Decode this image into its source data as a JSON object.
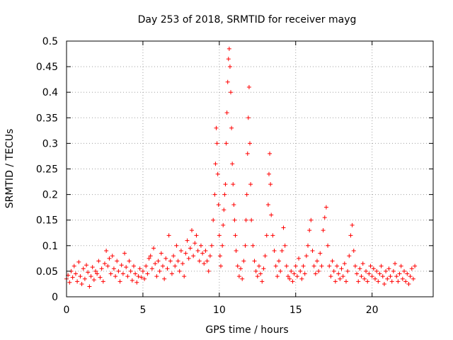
{
  "chart_data": {
    "type": "scatter",
    "title": "Day 253 of 2018, SRMTID for receiver mayg",
    "xlabel": "GPS time / hours",
    "ylabel": "SRMTID / TECUs",
    "xlim": [
      0,
      24
    ],
    "ylim": [
      0,
      0.5
    ],
    "x_ticks": [
      0,
      5,
      10,
      15,
      20
    ],
    "x_tick_labels": [
      "0",
      "5",
      "10",
      "15",
      "20"
    ],
    "y_ticks": [
      0,
      0.05,
      0.1,
      0.15,
      0.2,
      0.25,
      0.3,
      0.35,
      0.4,
      0.45,
      0.5
    ],
    "y_tick_labels": [
      "0",
      "0.05",
      "0.1",
      "0.15",
      "0.2",
      "0.25",
      "0.3",
      "0.35",
      "0.4",
      "0.45",
      "0.5"
    ],
    "grid": true,
    "marker": "+",
    "color": "#ff0000",
    "series": [
      {
        "name": "SRMTID",
        "points": [
          [
            0.0,
            0.035
          ],
          [
            0.1,
            0.042
          ],
          [
            0.2,
            0.028
          ],
          [
            0.3,
            0.05
          ],
          [
            0.4,
            0.038
          ],
          [
            0.5,
            0.06
          ],
          [
            0.6,
            0.045
          ],
          [
            0.7,
            0.03
          ],
          [
            0.8,
            0.068
          ],
          [
            0.9,
            0.04
          ],
          [
            1.0,
            0.025
          ],
          [
            1.1,
            0.055
          ],
          [
            1.2,
            0.035
          ],
          [
            1.3,
            0.062
          ],
          [
            1.4,
            0.048
          ],
          [
            1.5,
            0.02
          ],
          [
            1.6,
            0.04
          ],
          [
            1.7,
            0.058
          ],
          [
            1.8,
            0.033
          ],
          [
            1.9,
            0.05
          ],
          [
            2.0,
            0.045
          ],
          [
            2.1,
            0.07
          ],
          [
            2.2,
            0.038
          ],
          [
            2.3,
            0.055
          ],
          [
            2.4,
            0.03
          ],
          [
            2.5,
            0.065
          ],
          [
            2.6,
            0.09
          ],
          [
            2.7,
            0.06
          ],
          [
            2.8,
            0.075
          ],
          [
            2.9,
            0.045
          ],
          [
            3.0,
            0.08
          ],
          [
            3.1,
            0.055
          ],
          [
            3.2,
            0.04
          ],
          [
            3.3,
            0.07
          ],
          [
            3.4,
            0.05
          ],
          [
            3.5,
            0.03
          ],
          [
            3.6,
            0.062
          ],
          [
            3.7,
            0.045
          ],
          [
            3.8,
            0.085
          ],
          [
            3.9,
            0.058
          ],
          [
            4.0,
            0.04
          ],
          [
            4.1,
            0.07
          ],
          [
            4.2,
            0.05
          ],
          [
            4.3,
            0.032
          ],
          [
            4.4,
            0.06
          ],
          [
            4.5,
            0.045
          ],
          [
            4.6,
            0.028
          ],
          [
            4.7,
            0.04
          ],
          [
            4.8,
            0.055
          ],
          [
            4.9,
            0.038
          ],
          [
            5.0,
            0.05
          ],
          [
            5.1,
            0.035
          ],
          [
            5.2,
            0.06
          ],
          [
            5.3,
            0.045
          ],
          [
            5.4,
            0.075
          ],
          [
            5.5,
            0.08
          ],
          [
            5.6,
            0.055
          ],
          [
            5.7,
            0.095
          ],
          [
            5.8,
            0.065
          ],
          [
            5.9,
            0.04
          ],
          [
            6.0,
            0.07
          ],
          [
            6.1,
            0.05
          ],
          [
            6.2,
            0.085
          ],
          [
            6.3,
            0.06
          ],
          [
            6.4,
            0.035
          ],
          [
            6.5,
            0.075
          ],
          [
            6.6,
            0.055
          ],
          [
            6.7,
            0.12
          ],
          [
            6.8,
            0.07
          ],
          [
            6.9,
            0.045
          ],
          [
            7.0,
            0.08
          ],
          [
            7.1,
            0.06
          ],
          [
            7.2,
            0.1
          ],
          [
            7.3,
            0.07
          ],
          [
            7.4,
            0.05
          ],
          [
            7.5,
            0.09
          ],
          [
            7.6,
            0.065
          ],
          [
            7.7,
            0.04
          ],
          [
            7.8,
            0.085
          ],
          [
            7.9,
            0.11
          ],
          [
            8.0,
            0.075
          ],
          [
            8.1,
            0.095
          ],
          [
            8.2,
            0.13
          ],
          [
            8.3,
            0.08
          ],
          [
            8.4,
            0.105
          ],
          [
            8.5,
            0.12
          ],
          [
            8.6,
            0.09
          ],
          [
            8.7,
            0.07
          ],
          [
            8.8,
            0.1
          ],
          [
            8.9,
            0.085
          ],
          [
            9.0,
            0.065
          ],
          [
            9.1,
            0.09
          ],
          [
            9.2,
            0.07
          ],
          [
            9.3,
            0.05
          ],
          [
            9.4,
            0.08
          ],
          [
            9.5,
            0.1
          ],
          [
            9.6,
            0.15
          ],
          [
            9.7,
            0.2
          ],
          [
            9.75,
            0.26
          ],
          [
            9.8,
            0.33
          ],
          [
            9.85,
            0.3
          ],
          [
            9.9,
            0.24
          ],
          [
            9.95,
            0.18
          ],
          [
            10.0,
            0.12
          ],
          [
            10.05,
            0.08
          ],
          [
            10.1,
            0.06
          ],
          [
            10.2,
            0.1
          ],
          [
            10.25,
            0.14
          ],
          [
            10.3,
            0.17
          ],
          [
            10.35,
            0.2
          ],
          [
            10.4,
            0.22
          ],
          [
            10.45,
            0.3
          ],
          [
            10.5,
            0.36
          ],
          [
            10.55,
            0.42
          ],
          [
            10.6,
            0.465
          ],
          [
            10.65,
            0.485
          ],
          [
            10.7,
            0.45
          ],
          [
            10.75,
            0.4
          ],
          [
            10.8,
            0.33
          ],
          [
            10.85,
            0.26
          ],
          [
            10.9,
            0.22
          ],
          [
            10.95,
            0.18
          ],
          [
            11.0,
            0.15
          ],
          [
            11.05,
            0.12
          ],
          [
            11.1,
            0.09
          ],
          [
            11.2,
            0.06
          ],
          [
            11.3,
            0.04
          ],
          [
            11.4,
            0.055
          ],
          [
            11.5,
            0.035
          ],
          [
            11.6,
            0.07
          ],
          [
            11.7,
            0.1
          ],
          [
            11.75,
            0.15
          ],
          [
            11.8,
            0.2
          ],
          [
            11.85,
            0.28
          ],
          [
            11.9,
            0.35
          ],
          [
            11.95,
            0.41
          ],
          [
            12.0,
            0.3
          ],
          [
            12.05,
            0.22
          ],
          [
            12.1,
            0.15
          ],
          [
            12.2,
            0.1
          ],
          [
            12.3,
            0.07
          ],
          [
            12.4,
            0.05
          ],
          [
            12.5,
            0.04
          ],
          [
            12.6,
            0.06
          ],
          [
            12.7,
            0.045
          ],
          [
            12.8,
            0.03
          ],
          [
            12.9,
            0.055
          ],
          [
            13.0,
            0.08
          ],
          [
            13.1,
            0.12
          ],
          [
            13.2,
            0.18
          ],
          [
            13.25,
            0.24
          ],
          [
            13.3,
            0.28
          ],
          [
            13.35,
            0.22
          ],
          [
            13.4,
            0.16
          ],
          [
            13.5,
            0.12
          ],
          [
            13.6,
            0.09
          ],
          [
            13.7,
            0.06
          ],
          [
            13.8,
            0.04
          ],
          [
            13.9,
            0.07
          ],
          [
            14.0,
            0.05
          ],
          [
            14.1,
            0.09
          ],
          [
            14.2,
            0.135
          ],
          [
            14.3,
            0.1
          ],
          [
            14.4,
            0.06
          ],
          [
            14.5,
            0.04
          ],
          [
            14.6,
            0.035
          ],
          [
            14.7,
            0.05
          ],
          [
            14.8,
            0.03
          ],
          [
            14.9,
            0.045
          ],
          [
            15.0,
            0.06
          ],
          [
            15.1,
            0.04
          ],
          [
            15.2,
            0.075
          ],
          [
            15.3,
            0.05
          ],
          [
            15.4,
            0.035
          ],
          [
            15.5,
            0.06
          ],
          [
            15.6,
            0.045
          ],
          [
            15.7,
            0.08
          ],
          [
            15.8,
            0.1
          ],
          [
            15.9,
            0.13
          ],
          [
            16.0,
            0.15
          ],
          [
            16.1,
            0.09
          ],
          [
            16.2,
            0.06
          ],
          [
            16.3,
            0.045
          ],
          [
            16.4,
            0.07
          ],
          [
            16.5,
            0.05
          ],
          [
            16.6,
            0.085
          ],
          [
            16.7,
            0.06
          ],
          [
            16.8,
            0.13
          ],
          [
            16.9,
            0.155
          ],
          [
            17.0,
            0.175
          ],
          [
            17.1,
            0.1
          ],
          [
            17.2,
            0.06
          ],
          [
            17.3,
            0.04
          ],
          [
            17.4,
            0.07
          ],
          [
            17.5,
            0.05
          ],
          [
            17.6,
            0.03
          ],
          [
            17.7,
            0.06
          ],
          [
            17.8,
            0.045
          ],
          [
            17.9,
            0.035
          ],
          [
            18.0,
            0.055
          ],
          [
            18.1,
            0.04
          ],
          [
            18.2,
            0.065
          ],
          [
            18.3,
            0.03
          ],
          [
            18.4,
            0.05
          ],
          [
            18.5,
            0.08
          ],
          [
            18.6,
            0.12
          ],
          [
            18.7,
            0.14
          ],
          [
            18.8,
            0.09
          ],
          [
            18.9,
            0.06
          ],
          [
            19.0,
            0.045
          ],
          [
            19.1,
            0.03
          ],
          [
            19.2,
            0.055
          ],
          [
            19.3,
            0.04
          ],
          [
            19.4,
            0.065
          ],
          [
            19.5,
            0.035
          ],
          [
            19.6,
            0.05
          ],
          [
            19.7,
            0.03
          ],
          [
            19.8,
            0.045
          ],
          [
            19.9,
            0.06
          ],
          [
            20.0,
            0.04
          ],
          [
            20.1,
            0.055
          ],
          [
            20.2,
            0.035
          ],
          [
            20.3,
            0.05
          ],
          [
            20.4,
            0.03
          ],
          [
            20.5,
            0.045
          ],
          [
            20.6,
            0.06
          ],
          [
            20.7,
            0.04
          ],
          [
            20.8,
            0.025
          ],
          [
            20.9,
            0.05
          ],
          [
            21.0,
            0.035
          ],
          [
            21.1,
            0.055
          ],
          [
            21.2,
            0.04
          ],
          [
            21.3,
            0.03
          ],
          [
            21.4,
            0.05
          ],
          [
            21.5,
            0.065
          ],
          [
            21.6,
            0.04
          ],
          [
            21.7,
            0.03
          ],
          [
            21.8,
            0.045
          ],
          [
            21.9,
            0.06
          ],
          [
            22.0,
            0.035
          ],
          [
            22.1,
            0.05
          ],
          [
            22.2,
            0.03
          ],
          [
            22.3,
            0.045
          ],
          [
            22.4,
            0.025
          ],
          [
            22.5,
            0.04
          ],
          [
            22.6,
            0.055
          ],
          [
            22.7,
            0.035
          ],
          [
            22.8,
            0.06
          ]
        ]
      }
    ]
  }
}
